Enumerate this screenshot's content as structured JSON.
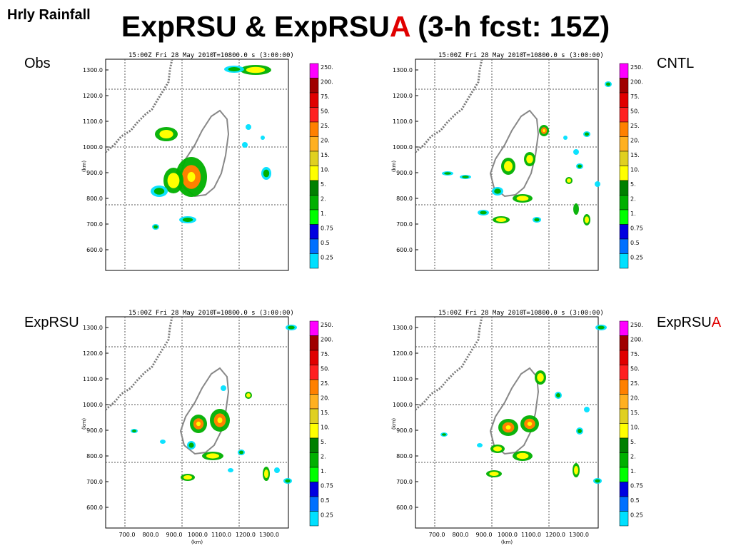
{
  "corner_label": "Hrly Rainfall",
  "title": {
    "main": "ExpRSU & ExpRSU",
    "accent": "A",
    "suffix": " (3-h fcst: 15Z)"
  },
  "panels": [
    {
      "id": "obs",
      "label": "Obs",
      "label_accent": "",
      "header_left": "15:00Z Fri 28 May 2010",
      "header_right": "T=10800.0 s (3:00:00)",
      "show_x_ticks": false
    },
    {
      "id": "cntl",
      "label": "CNTL",
      "label_accent": "",
      "header_left": "15:00Z Fri 28 May 2010",
      "header_right": "T=10800.0 s (3:00:00)",
      "show_x_ticks": false
    },
    {
      "id": "exprsu",
      "label": "ExpRSU",
      "label_accent": "",
      "header_left": "15:00Z Fri 28 May 2010",
      "header_right": "T=10800.0 s (3:00:00)",
      "show_x_ticks": true
    },
    {
      "id": "exprsua",
      "label": "ExpRSU",
      "label_accent": "A",
      "header_left": "15:00Z Fri 28 May 2010",
      "header_right": "T=10800.0 s (3:00:00)",
      "show_x_ticks": true
    }
  ],
  "axes": {
    "y_ticks": [
      "1300.0",
      "1200.0",
      "1100.0",
      "1000.0",
      "900.0",
      "800.0",
      "700.0",
      "600.0"
    ],
    "x_ticks": [
      "700.0",
      "800.0",
      "900.0",
      "1000.0",
      "1100.0",
      "1200.0",
      "1300.0"
    ],
    "unit": "(km)"
  },
  "colorbar": {
    "labels": [
      "250.",
      "200.",
      "75.",
      "50.",
      "25.",
      "20.",
      "15.",
      "10.",
      "5.",
      "2.",
      "1.",
      "0.75",
      "0.5",
      "0.25"
    ],
    "colors": [
      "#ff00ff",
      "#a00000",
      "#e00000",
      "#ff2020",
      "#ff8000",
      "#ffb020",
      "#e0d020",
      "#ffff00",
      "#008000",
      "#00b000",
      "#00ff00",
      "#0000e0",
      "#0070ff",
      "#00e0ff"
    ]
  }
}
